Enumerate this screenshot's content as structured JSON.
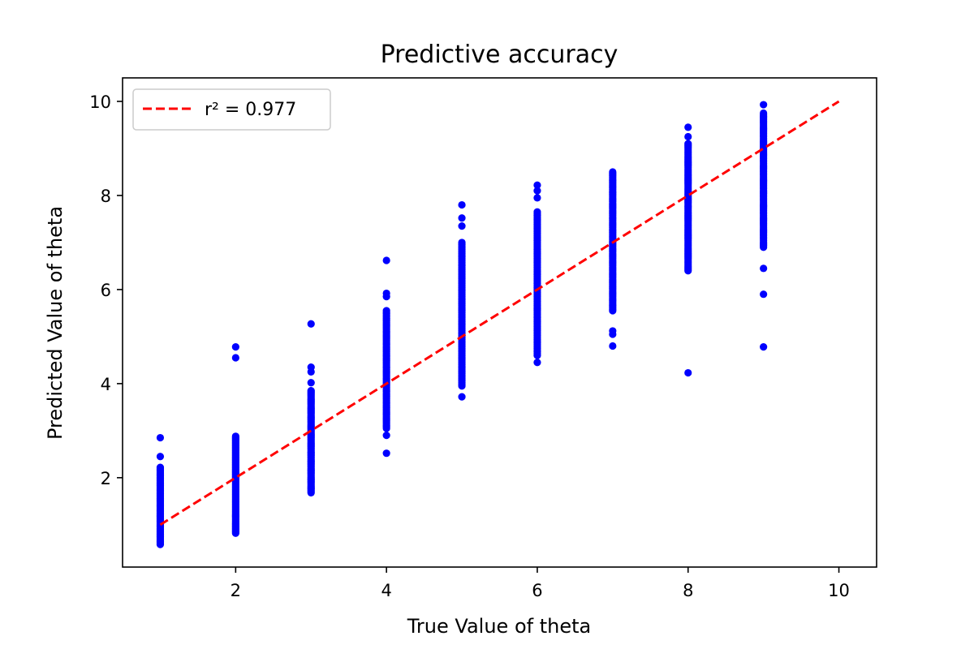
{
  "chart_data": {
    "type": "scatter",
    "title": "Predictive accuracy",
    "xlabel": "True Value of theta",
    "ylabel": "Predicted Value of theta",
    "xlim": [
      0.5,
      10.5
    ],
    "ylim": [
      0.1,
      10.5
    ],
    "x_ticks": [
      2,
      4,
      6,
      8,
      10
    ],
    "y_ticks": [
      2,
      4,
      6,
      8,
      10
    ],
    "grid": false,
    "legend_position": "top-left",
    "colors": {
      "points": "#0000ff",
      "fit_line": "#ff0000",
      "axes": "#000000"
    },
    "series": [
      {
        "type": "scatter",
        "color": "#0000ff",
        "groups": [
          {
            "x": 1,
            "y_min": 0.58,
            "y_max": 2.22,
            "outliers": [
              2.45,
              2.85
            ]
          },
          {
            "x": 2,
            "y_min": 0.82,
            "y_max": 2.88,
            "outliers": [
              4.55,
              4.78
            ]
          },
          {
            "x": 3,
            "y_min": 1.68,
            "y_max": 3.85,
            "outliers": [
              4.02,
              4.25,
              4.35,
              5.27
            ]
          },
          {
            "x": 4,
            "y_min": 3.05,
            "y_max": 5.55,
            "outliers": [
              2.52,
              2.9,
              5.85,
              5.92,
              6.62
            ]
          },
          {
            "x": 5,
            "y_min": 3.95,
            "y_max": 7.0,
            "outliers": [
              3.72,
              7.35,
              7.52,
              7.8
            ]
          },
          {
            "x": 6,
            "y_min": 4.6,
            "y_max": 7.65,
            "outliers": [
              4.45,
              7.95,
              8.1,
              8.22
            ]
          },
          {
            "x": 7,
            "y_min": 5.55,
            "y_max": 8.5,
            "outliers": [
              4.8,
              5.05,
              5.12
            ]
          },
          {
            "x": 8,
            "y_min": 6.4,
            "y_max": 9.1,
            "outliers": [
              4.23,
              9.25,
              9.45
            ]
          },
          {
            "x": 9,
            "y_min": 6.9,
            "y_max": 9.75,
            "outliers": [
              4.78,
              5.9,
              6.45,
              9.93
            ]
          }
        ]
      },
      {
        "type": "line",
        "name": "r² = 0.977",
        "color": "#ff0000",
        "style": "dashed",
        "x": [
          1,
          10
        ],
        "y": [
          1,
          10
        ]
      }
    ]
  }
}
